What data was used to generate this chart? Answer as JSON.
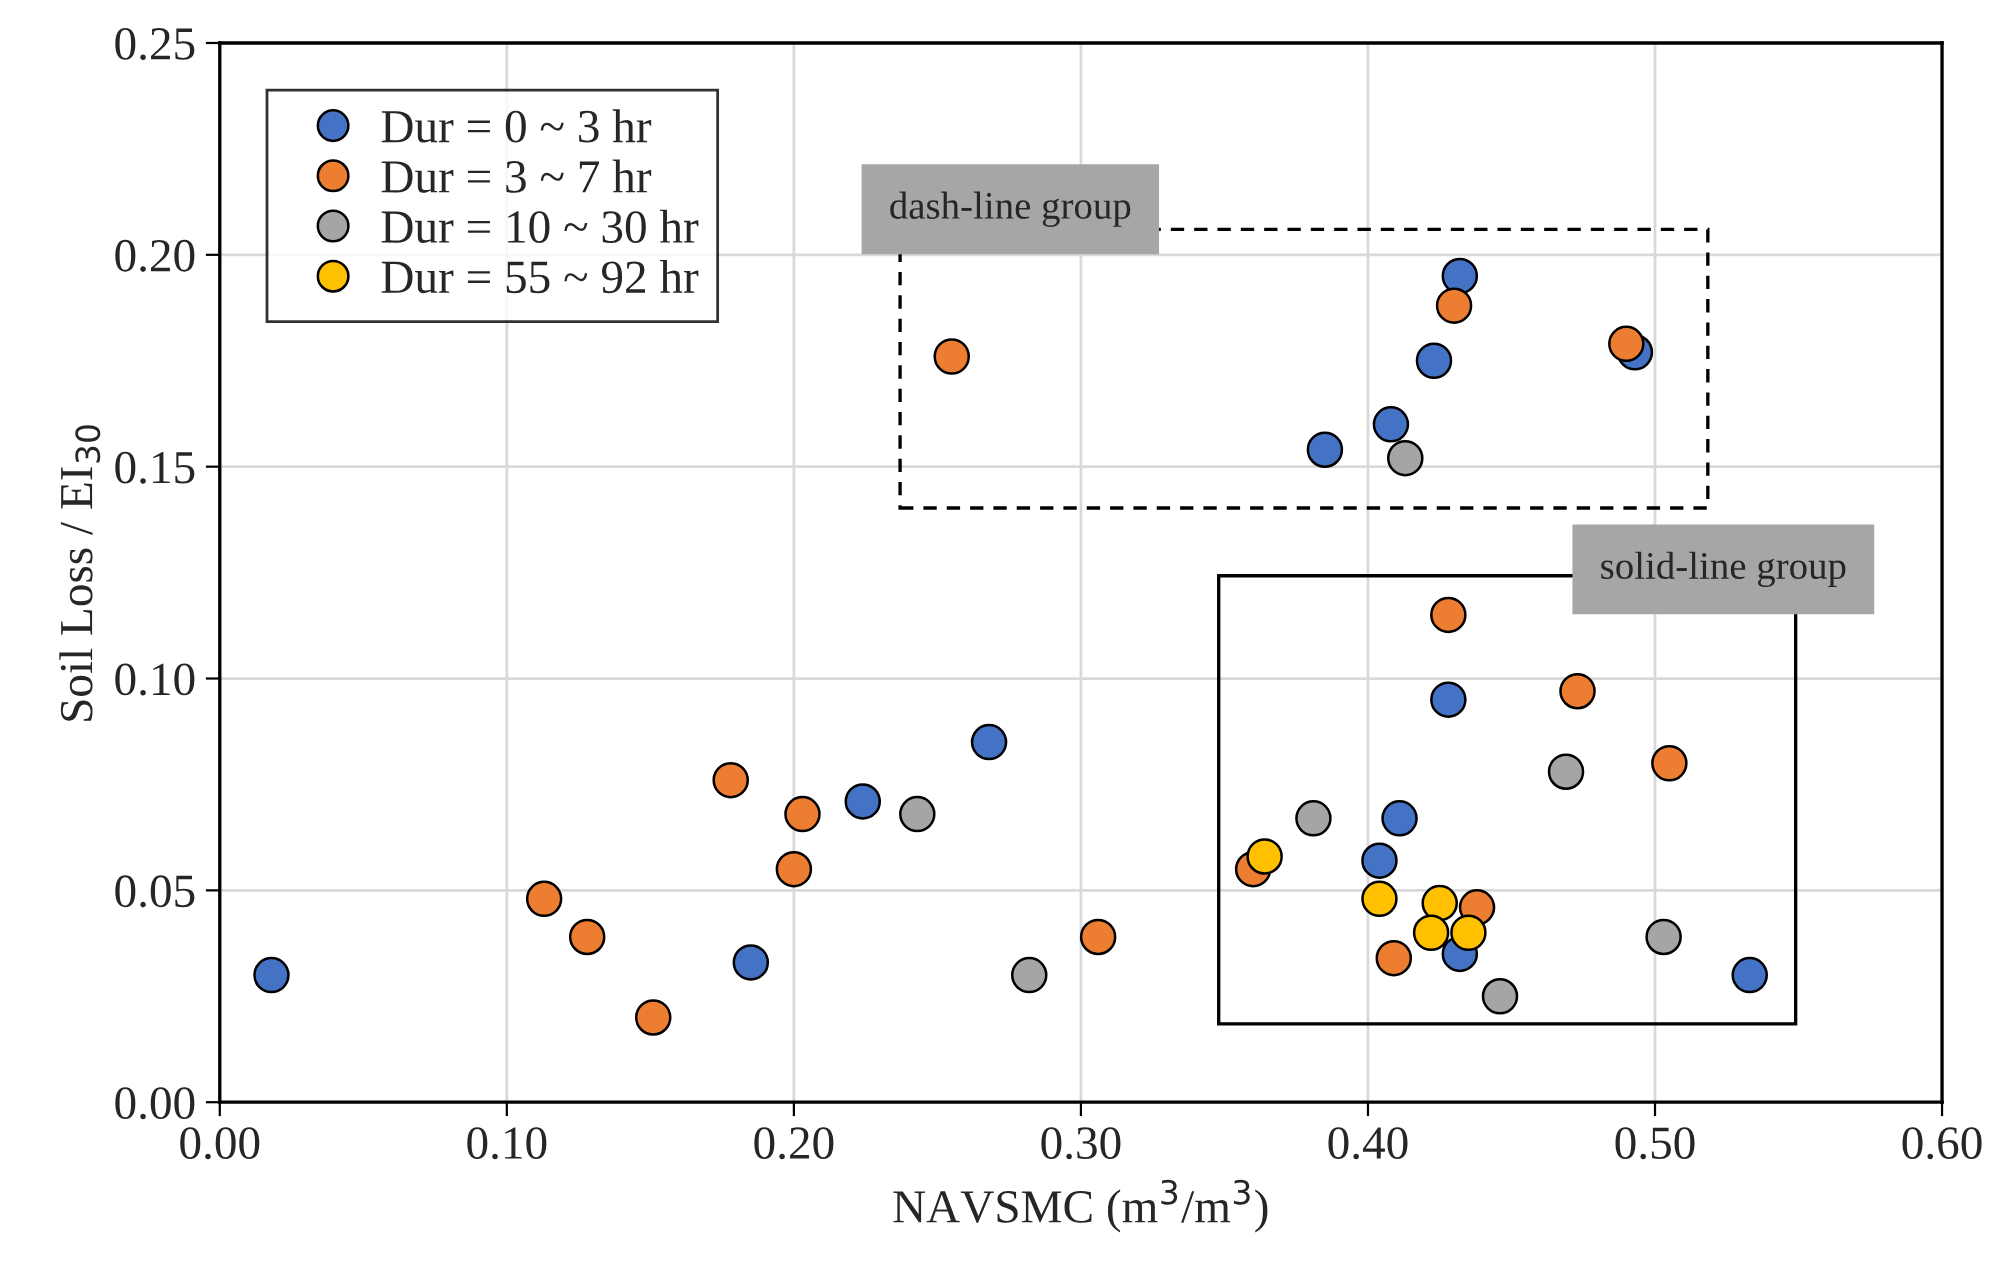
{
  "chart_data": {
    "type": "scatter",
    "xlabel": "NAVSMC (m$^{3}$/m$^{3}$)",
    "ylabel": "Soil Loss / EI$_{30}$",
    "xlim": [
      0,
      0.6
    ],
    "ylim": [
      0,
      0.25
    ],
    "xticks": [
      {
        "value": 0,
        "label": "0.00"
      },
      {
        "value": 0.1,
        "label": "0.10"
      },
      {
        "value": 0.2,
        "label": "0.20"
      },
      {
        "value": 0.3,
        "label": "0.30"
      },
      {
        "value": 0.4,
        "label": "0.40"
      },
      {
        "value": 0.5,
        "label": "0.50"
      },
      {
        "value": 0.6,
        "label": "0.60"
      }
    ],
    "yticks": [
      {
        "value": 0,
        "label": "0.00"
      },
      {
        "value": 0.05,
        "label": "0.05"
      },
      {
        "value": 0.1,
        "label": "0.10"
      },
      {
        "value": 0.15,
        "label": "0.15"
      },
      {
        "value": 0.2,
        "label": "0.20"
      },
      {
        "value": 0.25,
        "label": "0.25"
      }
    ],
    "grid": true,
    "legend": "top left",
    "marker": "circle",
    "annotations": [
      "dash-line group",
      "solid-line group"
    ],
    "series": [
      {
        "name": "Dur = 0 ~ 3 hr",
        "color": "#4472c4",
        "x": [
          0.018,
          0.185,
          0.224,
          0.268,
          0.428,
          0.411,
          0.404,
          0.432,
          0.533,
          0.432,
          0.493,
          0.423,
          0.408,
          0.385
        ],
        "values": [
          0.03,
          0.033,
          0.071,
          0.085,
          0.095,
          0.067,
          0.057,
          0.035,
          0.03,
          0.195,
          0.177,
          0.175,
          0.16,
          0.154
        ]
      },
      {
        "name": "Dur = 3 ~ 7 hr",
        "color": "#ed7d31",
        "x": [
          0.113,
          0.128,
          0.151,
          0.178,
          0.2,
          0.203,
          0.306,
          0.428,
          0.473,
          0.505,
          0.36,
          0.438,
          0.409,
          0.255,
          0.43,
          0.49
        ],
        "values": [
          0.048,
          0.039,
          0.02,
          0.076,
          0.055,
          0.068,
          0.039,
          0.115,
          0.097,
          0.08,
          0.055,
          0.046,
          0.034,
          0.176,
          0.188,
          0.179
        ]
      },
      {
        "name": "Dur = 10 ~ 30 hr",
        "color": "#a5a5a5",
        "x": [
          0.243,
          0.282,
          0.469,
          0.381,
          0.446,
          0.503,
          0.413
        ],
        "values": [
          0.068,
          0.03,
          0.078,
          0.067,
          0.025,
          0.039,
          0.152
        ]
      },
      {
        "name": "Dur = 55 ~ 92 hr",
        "color": "#ffc000",
        "x": [
          0.364,
          0.404,
          0.425,
          0.422,
          0.435
        ],
        "values": [
          0.058,
          0.048,
          0.047,
          0.04,
          0.04
        ]
      }
    ]
  }
}
